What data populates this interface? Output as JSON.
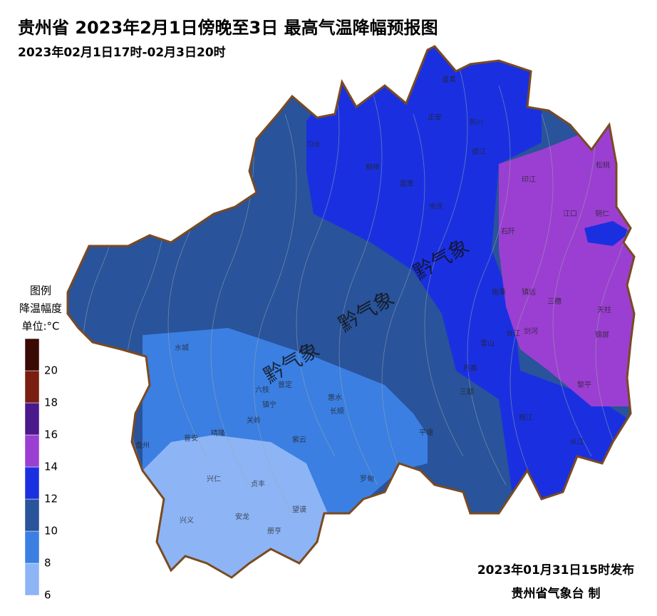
{
  "header": {
    "title": "贵州省 2023年2月1日傍晚至3日 最高气温降幅预报图",
    "subtitle": "2023年02月1日17时-02月3日20时"
  },
  "legend": {
    "title": "图例",
    "subtitle": "降温幅度",
    "unit": "单位:°C",
    "ticks": [
      6,
      8,
      10,
      12,
      14,
      16,
      18,
      20
    ],
    "colors": [
      "#8db4f5",
      "#3b7fe2",
      "#29539b",
      "#1a30e0",
      "#9b3fd2",
      "#4a1a8c",
      "#7a1e12",
      "#3a0a05"
    ]
  },
  "map": {
    "labels": [
      "道真",
      "正安",
      "务川",
      "德江",
      "印江",
      "松桃",
      "江口",
      "铜仁",
      "石阡",
      "湄潭",
      "余庆",
      "习水",
      "桐梓",
      "施秉",
      "镇远",
      "三穗",
      "天柱",
      "锦屏",
      "黎平",
      "剑河",
      "台江",
      "雷山",
      "榕江",
      "从江",
      "丹寨",
      "三都",
      "平塘",
      "罗甸",
      "惠水",
      "长顺",
      "紫云",
      "望谟",
      "册亨",
      "安龙",
      "贞丰",
      "兴仁",
      "兴义",
      "晴隆",
      "普安",
      "盘州",
      "水城",
      "六枝",
      "镇宁",
      "关岭",
      "普定"
    ],
    "watermarks": [
      "黔气象",
      "黔气象",
      "黔气象"
    ]
  },
  "footer": {
    "issued": "2023年01月31日15时发布",
    "issuer": "贵州省气象台 制"
  }
}
